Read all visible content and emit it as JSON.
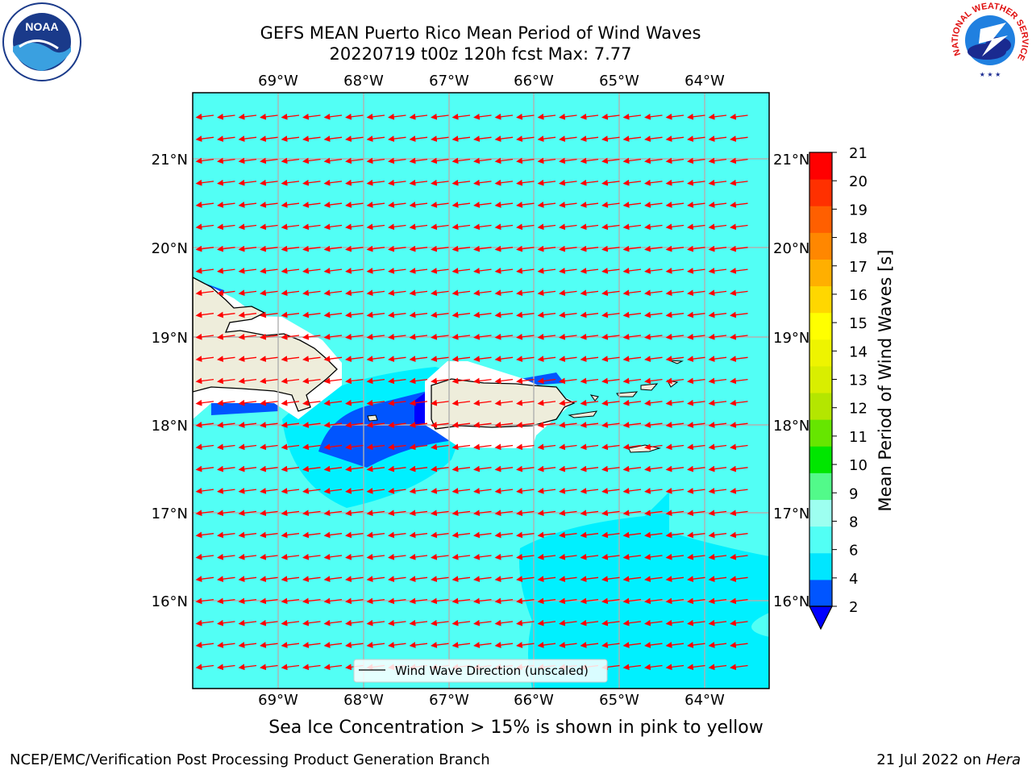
{
  "header": {
    "title_line1": "GEFS MEAN Puerto Rico Mean Period of Wind Waves",
    "title_line2": "20220719 t00z 120h fcst   Max: 7.77"
  },
  "logos": {
    "left": {
      "icon": "noaa-logo-icon",
      "text": "NOAA"
    },
    "right": {
      "icon": "nws-logo-icon",
      "text": "NATIONAL WEATHER SERVICE"
    }
  },
  "map": {
    "lon_labels": [
      "69°W",
      "68°W",
      "67°W",
      "66°W",
      "65°W",
      "64°W"
    ],
    "lat_labels": [
      "21°N",
      "20°N",
      "19°N",
      "18°N",
      "17°N",
      "16°N"
    ],
    "legend_label": "Wind Wave Direction (unscaled)",
    "ocean_color": "#00ffff",
    "land_color": "#eeeddb",
    "arrow_color": "#ff0000"
  },
  "colorbar": {
    "label": "Mean Period of Wind Waves [s]",
    "tick_labels": [
      "2",
      "4",
      "6",
      "8",
      "9",
      "10",
      "11",
      "12",
      "13",
      "14",
      "15",
      "16",
      "17",
      "18",
      "19",
      "20",
      "21"
    ],
    "colors": [
      "#0055ff",
      "#00e6ff",
      "#52fff5",
      "#9dfff0",
      "#52fa8a",
      "#00e600",
      "#66e600",
      "#b4e600",
      "#d9ee00",
      "#eef400",
      "#ffff00",
      "#ffd700",
      "#ffaf00",
      "#ff8700",
      "#ff5f00",
      "#ff3000",
      "#ff0000"
    ],
    "under_color": "#0000ff"
  },
  "footer": {
    "ice_note": "Sea Ice Concentration > 15% is shown in pink to yellow",
    "branch": "NCEP/EMC/Verification Post Processing Product Generation Branch",
    "date": "21 Jul 2022 on",
    "host": "Hera"
  }
}
